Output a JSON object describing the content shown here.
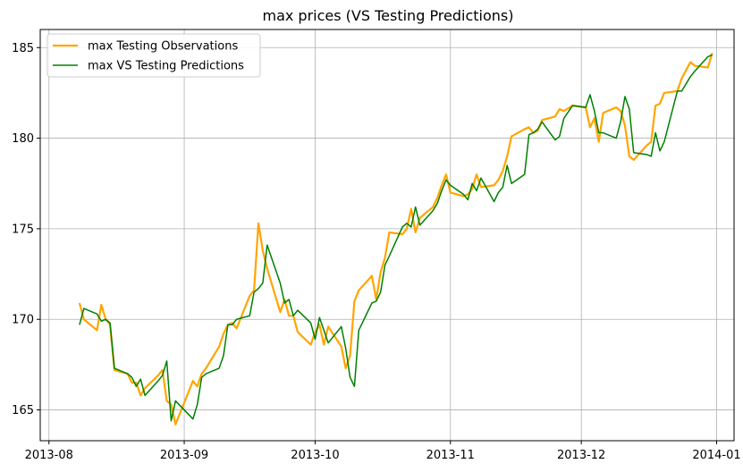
{
  "chart_data": {
    "type": "line",
    "title": "max prices (VS Testing Predictions)",
    "xlabel": "",
    "ylabel": "",
    "x_type": "date",
    "xlim": [
      "2013-07-30",
      "2014-01-05"
    ],
    "ylim": [
      163.3,
      186.0
    ],
    "x_ticks": [
      "2013-08-01",
      "2013-09-01",
      "2013-10-01",
      "2013-11-01",
      "2013-12-01",
      "2014-01-01"
    ],
    "x_tick_labels": [
      "2013-08",
      "2013-09",
      "2013-10",
      "2013-11",
      "2013-12",
      "2014-01"
    ],
    "y_ticks": [
      165,
      170,
      175,
      180,
      185
    ],
    "y_tick_labels": [
      "165",
      "170",
      "175",
      "180",
      "185"
    ],
    "grid": true,
    "legend_position": "top-left",
    "series": [
      {
        "name": "max Testing Observations",
        "color": "#ffa500",
        "points": [
          [
            "2013-08-08",
            170.9
          ],
          [
            "2013-08-09",
            170.0
          ],
          [
            "2013-08-12",
            169.4
          ],
          [
            "2013-08-13",
            170.8
          ],
          [
            "2013-08-14",
            170.0
          ],
          [
            "2013-08-15",
            169.7
          ],
          [
            "2013-08-16",
            167.2
          ],
          [
            "2013-08-19",
            167.0
          ],
          [
            "2013-08-20",
            166.5
          ],
          [
            "2013-08-21",
            166.5
          ],
          [
            "2013-08-22",
            165.8
          ],
          [
            "2013-08-23",
            166.2
          ],
          [
            "2013-08-26",
            166.9
          ],
          [
            "2013-08-27",
            167.2
          ],
          [
            "2013-08-28",
            165.5
          ],
          [
            "2013-08-29",
            165.3
          ],
          [
            "2013-08-30",
            164.2
          ],
          [
            "2013-09-03",
            166.6
          ],
          [
            "2013-09-04",
            166.3
          ],
          [
            "2013-09-05",
            167.0
          ],
          [
            "2013-09-06",
            167.3
          ],
          [
            "2013-09-09",
            168.5
          ],
          [
            "2013-09-10",
            169.2
          ],
          [
            "2013-09-11",
            169.7
          ],
          [
            "2013-09-12",
            169.8
          ],
          [
            "2013-09-13",
            169.5
          ],
          [
            "2013-09-16",
            171.3
          ],
          [
            "2013-09-17",
            171.6
          ],
          [
            "2013-09-18",
            175.3
          ],
          [
            "2013-09-19",
            173.8
          ],
          [
            "2013-09-20",
            172.8
          ],
          [
            "2013-09-23",
            170.4
          ],
          [
            "2013-09-24",
            171.1
          ],
          [
            "2013-09-25",
            170.2
          ],
          [
            "2013-09-26",
            170.2
          ],
          [
            "2013-09-27",
            169.3
          ],
          [
            "2013-09-30",
            168.6
          ],
          [
            "2013-10-01",
            169.3
          ],
          [
            "2013-10-02",
            169.7
          ],
          [
            "2013-10-03",
            168.6
          ],
          [
            "2013-10-04",
            169.6
          ],
          [
            "2013-10-07",
            168.5
          ],
          [
            "2013-10-08",
            167.3
          ],
          [
            "2013-10-09",
            168.0
          ],
          [
            "2013-10-10",
            171.0
          ],
          [
            "2013-10-11",
            171.6
          ],
          [
            "2013-10-14",
            172.4
          ],
          [
            "2013-10-15",
            171.1
          ],
          [
            "2013-10-16",
            172.6
          ],
          [
            "2013-10-17",
            173.4
          ],
          [
            "2013-10-18",
            174.8
          ],
          [
            "2013-10-21",
            174.7
          ],
          [
            "2013-10-22",
            175.0
          ],
          [
            "2013-10-23",
            176.1
          ],
          [
            "2013-10-24",
            174.8
          ],
          [
            "2013-10-25",
            175.6
          ],
          [
            "2013-10-28",
            176.2
          ],
          [
            "2013-10-29",
            176.7
          ],
          [
            "2013-10-30",
            177.4
          ],
          [
            "2013-10-31",
            178.0
          ],
          [
            "2013-11-01",
            177.0
          ],
          [
            "2013-11-04",
            176.8
          ],
          [
            "2013-11-05",
            176.9
          ],
          [
            "2013-11-06",
            177.2
          ],
          [
            "2013-11-07",
            178.0
          ],
          [
            "2013-11-08",
            177.3
          ],
          [
            "2013-11-11",
            177.4
          ],
          [
            "2013-11-12",
            177.7
          ],
          [
            "2013-11-13",
            178.2
          ],
          [
            "2013-11-14",
            179.0
          ],
          [
            "2013-11-15",
            180.1
          ],
          [
            "2013-11-18",
            180.5
          ],
          [
            "2013-11-19",
            180.6
          ],
          [
            "2013-11-20",
            180.3
          ],
          [
            "2013-11-21",
            180.4
          ],
          [
            "2013-11-22",
            181.0
          ],
          [
            "2013-11-25",
            181.2
          ],
          [
            "2013-11-26",
            181.6
          ],
          [
            "2013-11-27",
            181.5
          ],
          [
            "2013-11-29",
            181.8
          ],
          [
            "2013-12-02",
            181.7
          ],
          [
            "2013-12-03",
            180.6
          ],
          [
            "2013-12-04",
            181.1
          ],
          [
            "2013-12-05",
            179.8
          ],
          [
            "2013-12-06",
            181.4
          ],
          [
            "2013-12-09",
            181.7
          ],
          [
            "2013-12-10",
            181.5
          ],
          [
            "2013-12-11",
            180.7
          ],
          [
            "2013-12-12",
            179.0
          ],
          [
            "2013-12-13",
            178.8
          ],
          [
            "2013-12-16",
            179.6
          ],
          [
            "2013-12-17",
            179.8
          ],
          [
            "2013-12-18",
            181.8
          ],
          [
            "2013-12-19",
            181.9
          ],
          [
            "2013-12-20",
            182.5
          ],
          [
            "2013-12-23",
            182.6
          ],
          [
            "2013-12-24",
            183.3
          ],
          [
            "2013-12-26",
            184.2
          ],
          [
            "2013-12-27",
            184.0
          ],
          [
            "2013-12-30",
            183.9
          ],
          [
            "2013-12-31",
            184.7
          ]
        ]
      },
      {
        "name": "max VS Testing Predictions",
        "color": "#008000",
        "points": [
          [
            "2013-08-08",
            169.7
          ],
          [
            "2013-08-09",
            170.6
          ],
          [
            "2013-08-12",
            170.3
          ],
          [
            "2013-08-13",
            169.9
          ],
          [
            "2013-08-14",
            170.0
          ],
          [
            "2013-08-15",
            169.8
          ],
          [
            "2013-08-16",
            167.3
          ],
          [
            "2013-08-19",
            167.0
          ],
          [
            "2013-08-20",
            166.8
          ],
          [
            "2013-08-21",
            166.3
          ],
          [
            "2013-08-22",
            166.7
          ],
          [
            "2013-08-23",
            165.8
          ],
          [
            "2013-08-26",
            166.6
          ],
          [
            "2013-08-27",
            166.9
          ],
          [
            "2013-08-28",
            167.7
          ],
          [
            "2013-08-29",
            164.4
          ],
          [
            "2013-08-30",
            165.5
          ],
          [
            "2013-09-03",
            164.5
          ],
          [
            "2013-09-04",
            165.3
          ],
          [
            "2013-09-05",
            166.8
          ],
          [
            "2013-09-06",
            167.0
          ],
          [
            "2013-09-09",
            167.3
          ],
          [
            "2013-09-10",
            168.0
          ],
          [
            "2013-09-11",
            169.7
          ],
          [
            "2013-09-12",
            169.7
          ],
          [
            "2013-09-13",
            170.0
          ],
          [
            "2013-09-16",
            170.2
          ],
          [
            "2013-09-17",
            171.5
          ],
          [
            "2013-09-18",
            171.7
          ],
          [
            "2013-09-19",
            172.0
          ],
          [
            "2013-09-20",
            174.1
          ],
          [
            "2013-09-23",
            172.0
          ],
          [
            "2013-09-24",
            170.9
          ],
          [
            "2013-09-25",
            171.1
          ],
          [
            "2013-09-26",
            170.2
          ],
          [
            "2013-09-27",
            170.5
          ],
          [
            "2013-09-30",
            169.8
          ],
          [
            "2013-10-01",
            168.9
          ],
          [
            "2013-10-02",
            170.1
          ],
          [
            "2013-10-03",
            169.4
          ],
          [
            "2013-10-04",
            168.7
          ],
          [
            "2013-10-07",
            169.6
          ],
          [
            "2013-10-08",
            168.4
          ],
          [
            "2013-10-09",
            166.8
          ],
          [
            "2013-10-10",
            166.3
          ],
          [
            "2013-10-11",
            169.4
          ],
          [
            "2013-10-14",
            170.9
          ],
          [
            "2013-10-15",
            171.0
          ],
          [
            "2013-10-16",
            171.5
          ],
          [
            "2013-10-17",
            173.0
          ],
          [
            "2013-10-18",
            173.5
          ],
          [
            "2013-10-21",
            175.1
          ],
          [
            "2013-10-22",
            175.3
          ],
          [
            "2013-10-23",
            175.1
          ],
          [
            "2013-10-24",
            176.2
          ],
          [
            "2013-10-25",
            175.2
          ],
          [
            "2013-10-28",
            176.0
          ],
          [
            "2013-10-29",
            176.4
          ],
          [
            "2013-10-30",
            177.1
          ],
          [
            "2013-10-31",
            177.7
          ],
          [
            "2013-11-01",
            177.4
          ],
          [
            "2013-11-04",
            176.9
          ],
          [
            "2013-11-05",
            176.6
          ],
          [
            "2013-11-06",
            177.5
          ],
          [
            "2013-11-07",
            177.1
          ],
          [
            "2013-11-08",
            177.8
          ],
          [
            "2013-11-11",
            176.5
          ],
          [
            "2013-11-12",
            177.0
          ],
          [
            "2013-11-13",
            177.3
          ],
          [
            "2013-11-14",
            178.5
          ],
          [
            "2013-11-15",
            177.5
          ],
          [
            "2013-11-18",
            178.0
          ],
          [
            "2013-11-19",
            180.2
          ],
          [
            "2013-11-20",
            180.3
          ],
          [
            "2013-11-21",
            180.5
          ],
          [
            "2013-11-22",
            180.9
          ],
          [
            "2013-11-25",
            179.9
          ],
          [
            "2013-11-26",
            180.1
          ],
          [
            "2013-11-27",
            181.1
          ],
          [
            "2013-11-29",
            181.8
          ],
          [
            "2013-12-02",
            181.7
          ],
          [
            "2013-12-03",
            182.4
          ],
          [
            "2013-12-04",
            181.5
          ],
          [
            "2013-12-05",
            180.3
          ],
          [
            "2013-12-06",
            180.3
          ],
          [
            "2013-12-09",
            180.0
          ],
          [
            "2013-12-10",
            180.9
          ],
          [
            "2013-12-11",
            182.3
          ],
          [
            "2013-12-12",
            181.6
          ],
          [
            "2013-12-13",
            179.2
          ],
          [
            "2013-12-16",
            179.1
          ],
          [
            "2013-12-17",
            179.0
          ],
          [
            "2013-12-18",
            180.3
          ],
          [
            "2013-12-19",
            179.3
          ],
          [
            "2013-12-20",
            179.8
          ],
          [
            "2013-12-23",
            182.6
          ],
          [
            "2013-12-24",
            182.6
          ],
          [
            "2013-12-26",
            183.4
          ],
          [
            "2013-12-27",
            183.7
          ],
          [
            "2013-12-30",
            184.5
          ],
          [
            "2013-12-31",
            184.6
          ]
        ]
      }
    ]
  }
}
